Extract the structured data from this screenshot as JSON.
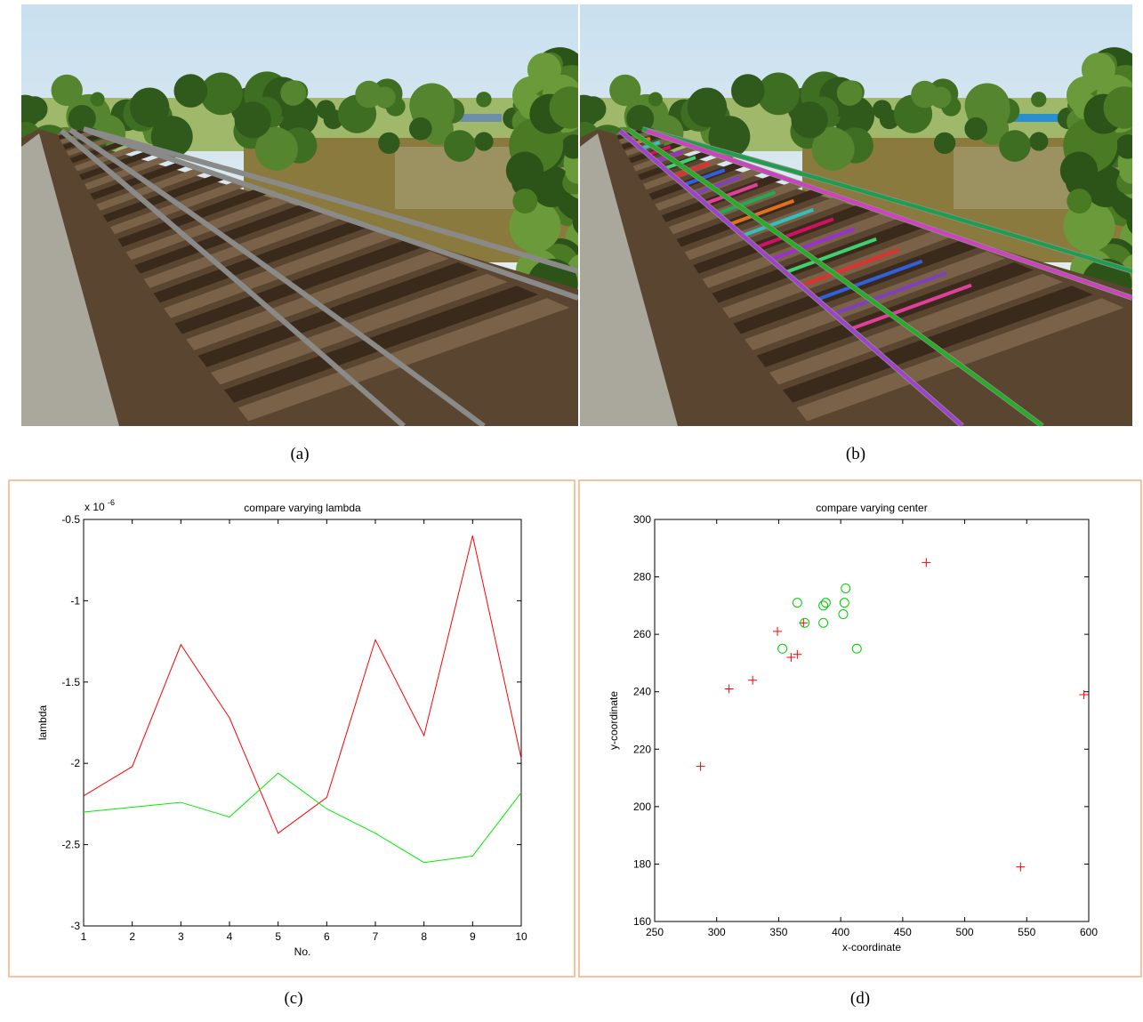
{
  "captions": [
    "(a)",
    "(b)",
    "(c)",
    "(d)"
  ],
  "chart_data": [
    {
      "type": "line",
      "title": "compare varying lambda",
      "x_label": "No.",
      "y_label": "lambda",
      "y_multiplier": "x 10",
      "y_multiplier_exponent": "-6",
      "x": [
        1,
        2,
        3,
        4,
        5,
        6,
        7,
        8,
        9,
        10
      ],
      "series": [
        {
          "color": "#ff0000",
          "values": [
            -2.2,
            -2.02,
            -1.27,
            -1.72,
            -2.43,
            -2.21,
            -1.24,
            -1.83,
            -0.6,
            -1.97
          ]
        },
        {
          "color": "#00ee00",
          "values": [
            -2.3,
            -2.27,
            -2.24,
            -2.33,
            -2.06,
            -2.28,
            -2.43,
            -2.61,
            -2.57,
            -2.18
          ]
        }
      ],
      "xlim": [
        1,
        10
      ],
      "xticks": [
        1,
        2,
        3,
        4,
        5,
        6,
        7,
        8,
        9,
        10
      ],
      "ylim": [
        -3,
        -0.5
      ],
      "yticks": [
        -3,
        -2.5,
        -2,
        -1.5,
        -1,
        -0.5
      ],
      "grid": false
    },
    {
      "type": "scatter",
      "title": "compare varying center",
      "x_label": "x-coordinate",
      "y_label": "y-coordinate",
      "series": [
        {
          "color": "#ff0000",
          "marker": "+",
          "x": [
            287,
            310,
            329,
            349,
            360,
            365,
            370,
            469,
            545,
            596
          ],
          "values": [
            214,
            241,
            244,
            261,
            252,
            253,
            264,
            285,
            179,
            239
          ]
        },
        {
          "color": "#00cc00",
          "marker": "o",
          "x": [
            353,
            365,
            371,
            386,
            386,
            388,
            402,
            403,
            404,
            413
          ],
          "values": [
            255,
            271,
            264,
            264,
            270,
            271,
            267,
            271,
            276,
            255
          ]
        }
      ],
      "xlim": [
        250,
        600
      ],
      "xticks": [
        250,
        300,
        350,
        400,
        450,
        500,
        550,
        600
      ],
      "ylim": [
        160,
        300
      ],
      "yticks": [
        160,
        180,
        200,
        220,
        240,
        260,
        280,
        300
      ],
      "grid": false
    }
  ]
}
